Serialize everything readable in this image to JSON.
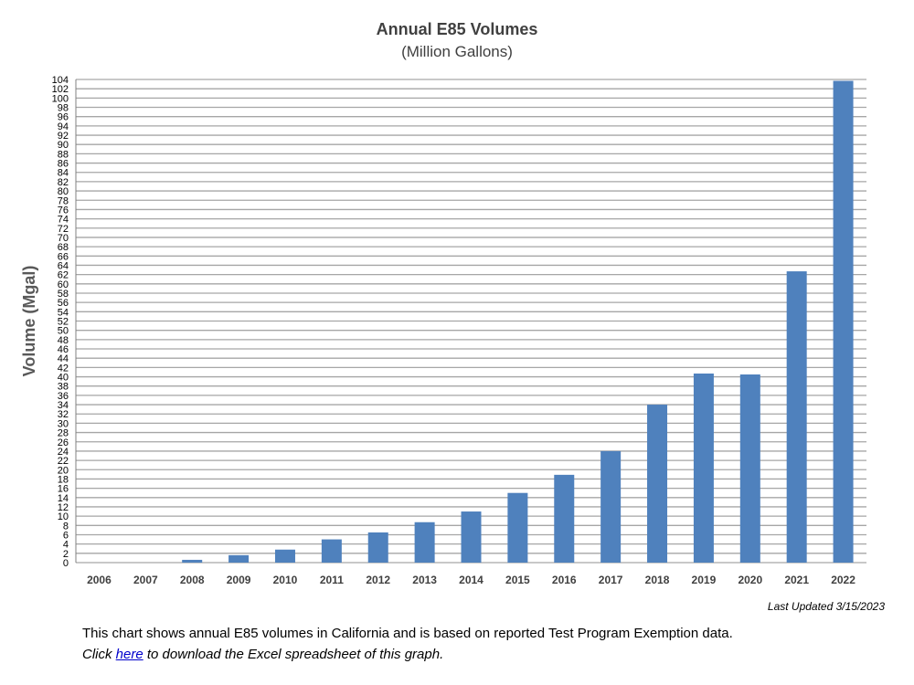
{
  "chart_data": {
    "type": "bar",
    "title": "Annual E85 Volumes",
    "subtitle": "(Million Gallons)",
    "xlabel": "",
    "ylabel": "Volume  (Mgal)",
    "ylim": [
      0,
      104
    ],
    "ytick_step": 2,
    "grid": true,
    "categories": [
      "2006",
      "2007",
      "2008",
      "2009",
      "2010",
      "2011",
      "2012",
      "2013",
      "2014",
      "2015",
      "2016",
      "2017",
      "2018",
      "2019",
      "2020",
      "2021",
      "2022"
    ],
    "values": [
      0,
      0,
      0.6,
      1.6,
      2.8,
      5.0,
      6.5,
      8.7,
      11.0,
      15.0,
      18.9,
      24.0,
      34.0,
      40.7,
      40.5,
      62.7,
      103.7
    ],
    "bar_color": "#4f81bd"
  },
  "footer": {
    "last_updated": "Last Updated 3/15/2023",
    "description": "This chart shows annual E85 volumes in California and is based on reported Test Program Exemption data.",
    "click": "Click ",
    "link_text": "here",
    "link_rest": " to download the Excel spreadsheet of this graph."
  }
}
